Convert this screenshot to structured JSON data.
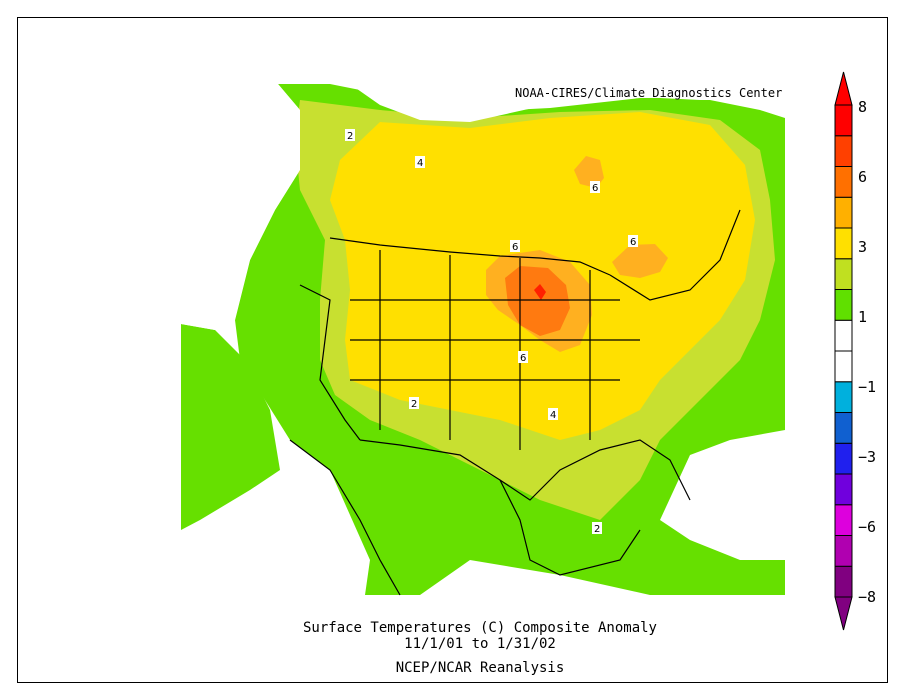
{
  "credit": "NOAA-CIRES/Climate Diagnostics Center",
  "title": {
    "line1": "Surface Temperatures (C)   Composite Anomaly",
    "line2": "11/1/01  to 1/31/02",
    "line3": "NCEP/NCAR Reanalysis"
  },
  "colorbar": {
    "labels": [
      "8",
      "6",
      "3",
      "1",
      "−1",
      "−3",
      "−6",
      "−8"
    ],
    "colors": [
      "#800080",
      "#b000b0",
      "#dd00dd",
      "#7000dd",
      "#2020ee",
      "#1060d0",
      "#00b0dd",
      "#ffffff",
      "#ffffff",
      "#60e000",
      "#c0e020",
      "#ffe000",
      "#ffb000",
      "#ff7000",
      "#ff4000",
      "#ff0000"
    ]
  },
  "contour_labels": [
    "2",
    "4",
    "6",
    "6",
    "6",
    "6",
    "2",
    "4",
    "2"
  ],
  "fill_colors": {
    "anomaly_0_1": "#ffffff",
    "anomaly_1_2": "#66e000",
    "anomaly_2_3": "#c8e030",
    "anomaly_3_5": "#ffe000",
    "anomaly_5_6": "#ffb020",
    "anomaly_6_8": "#ff7a10",
    "anomaly_8_plus": "#ff2000"
  }
}
